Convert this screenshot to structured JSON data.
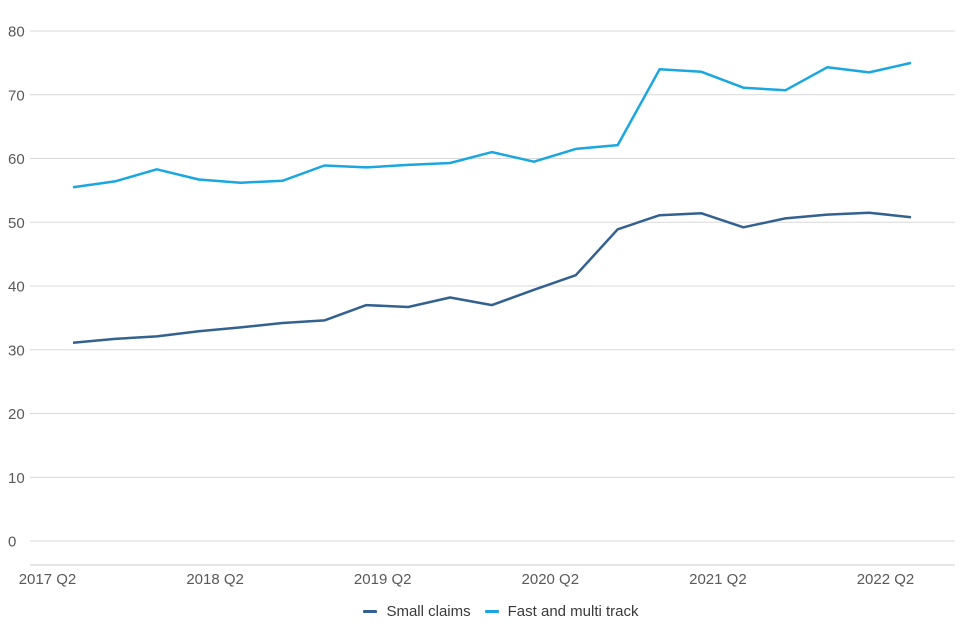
{
  "chart_data": {
    "type": "line",
    "x": [
      "2017 Q2",
      "2017 Q3",
      "2017 Q4",
      "2018 Q1",
      "2018 Q2",
      "2018 Q3",
      "2018 Q4",
      "2019 Q1",
      "2019 Q2",
      "2019 Q3",
      "2019 Q4",
      "2020 Q1",
      "2020 Q2",
      "2020 Q3",
      "2020 Q4",
      "2021 Q1",
      "2021 Q2",
      "2021 Q3",
      "2021 Q4",
      "2022 Q1",
      "2022 Q2"
    ],
    "series": [
      {
        "name": "Small claims",
        "color": "#336190",
        "values": [
          31.1,
          31.7,
          32.1,
          32.9,
          33.5,
          34.2,
          34.6,
          37.0,
          36.7,
          38.2,
          37.0,
          39.4,
          41.7,
          48.9,
          51.1,
          51.4,
          49.2,
          50.6,
          51.2,
          51.5,
          50.8
        ]
      },
      {
        "name": "Fast and multi track",
        "color": "#1aa7e0",
        "values": [
          55.5,
          56.4,
          58.3,
          56.7,
          56.2,
          56.5,
          58.9,
          58.6,
          59.0,
          59.3,
          61.0,
          59.5,
          61.5,
          62.1,
          74.0,
          73.6,
          71.1,
          70.7,
          74.3,
          73.5,
          75.0
        ]
      }
    ],
    "ylim": [
      0,
      80
    ],
    "y_ticks": [
      0,
      10,
      20,
      30,
      40,
      50,
      60,
      70,
      80
    ],
    "x_tick_labels": [
      "2017 Q2",
      "2018 Q2",
      "2019 Q2",
      "2020 Q2",
      "2021 Q2",
      "2022 Q2"
    ],
    "x_tick_every": 4,
    "grid": true,
    "legend_position": "bottom",
    "grid_color": "#d9d9d9",
    "axis_color": "#cccccc",
    "tick_label_color": "#595959",
    "legend_text_color": "#3a3a3a"
  }
}
